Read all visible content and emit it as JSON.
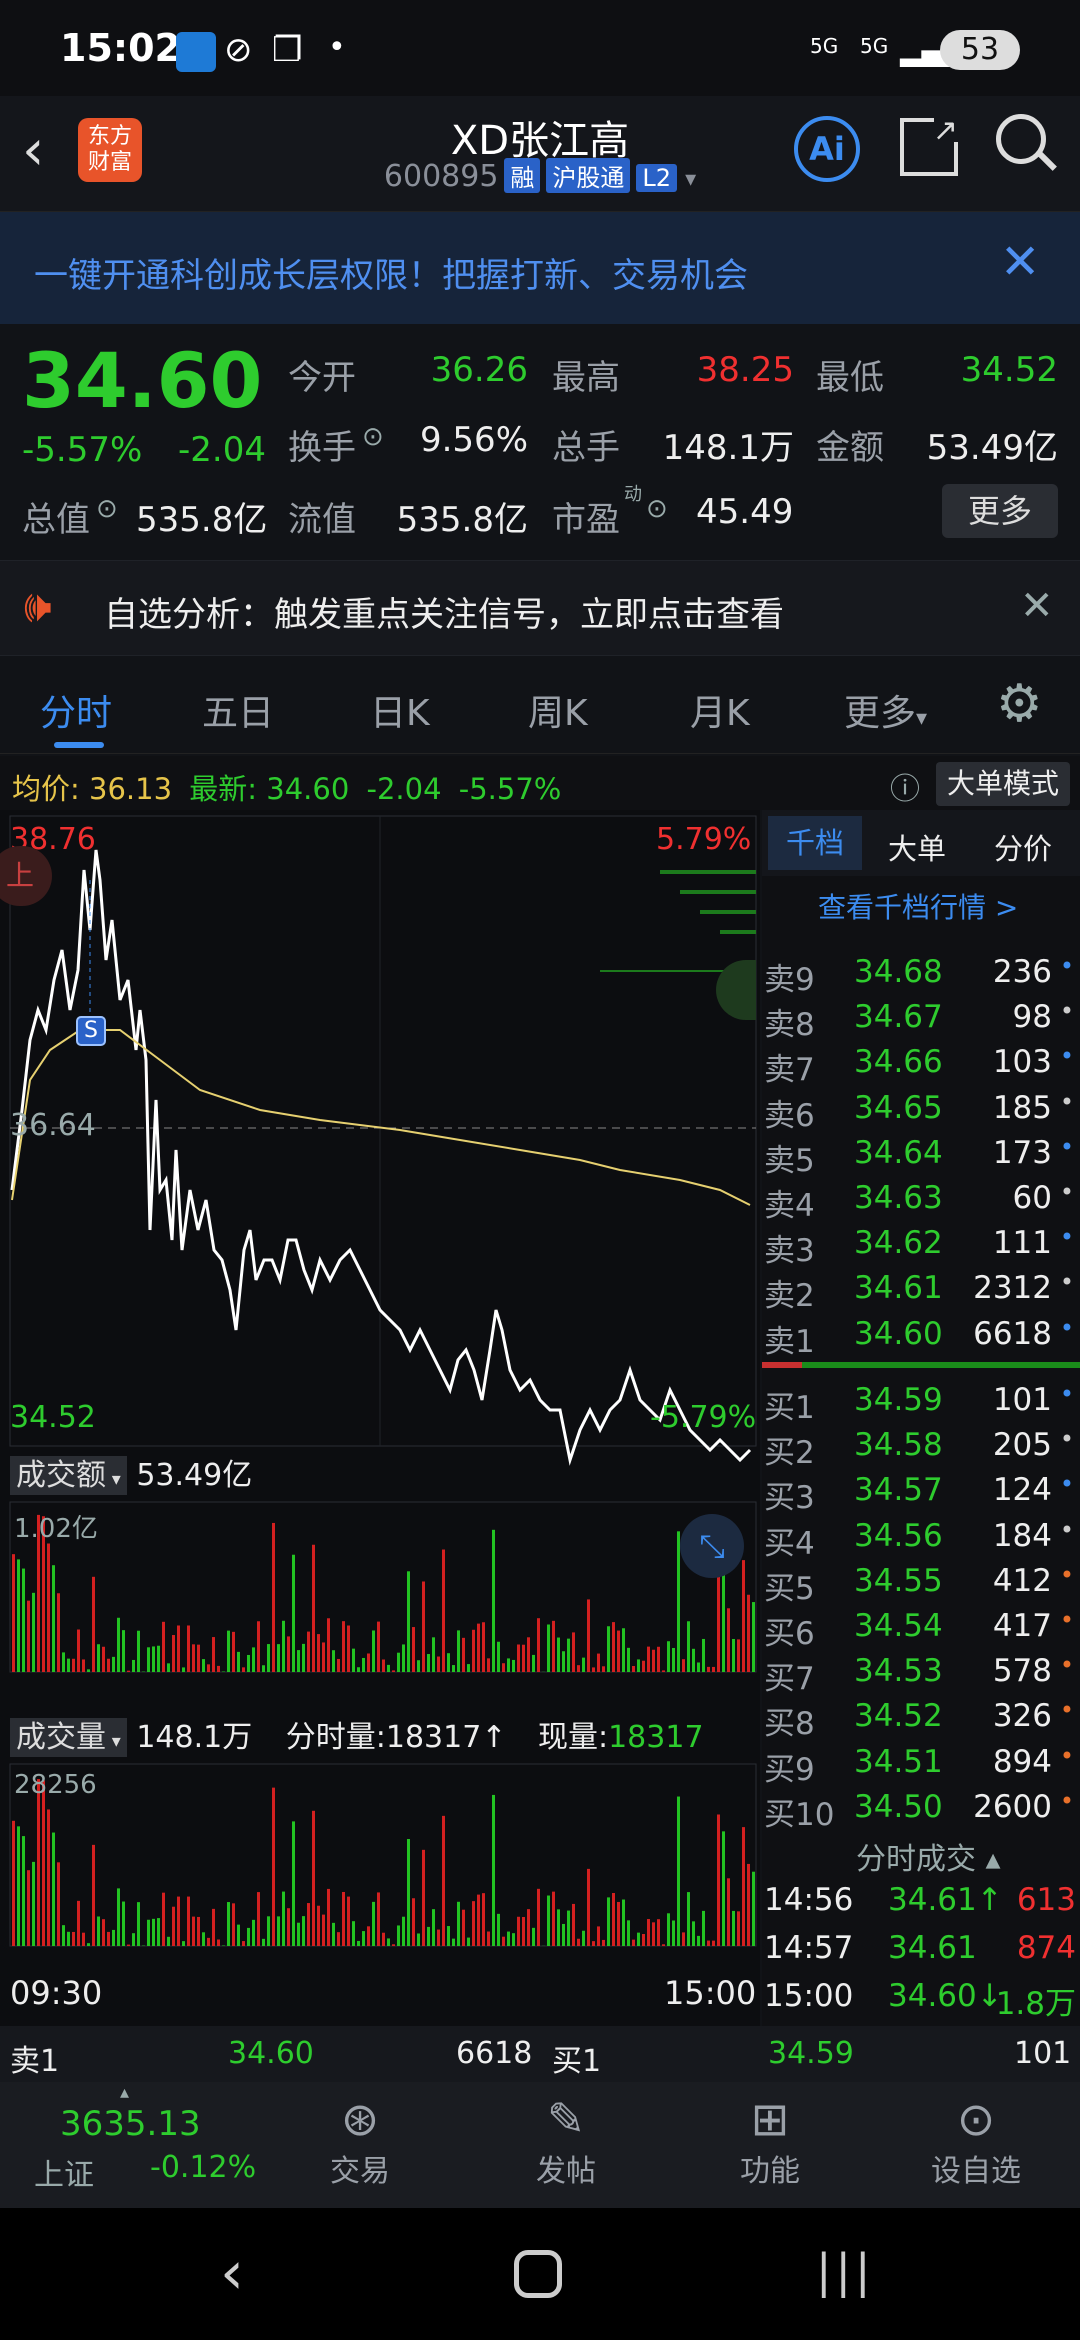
{
  "status": {
    "time": "15:02",
    "battery": "53",
    "net1": "5G",
    "net2": "5G"
  },
  "header": {
    "brand": "东方\n财富",
    "stock_name": "XD张江高",
    "code": "600895",
    "tags": [
      "融",
      "沪股通",
      "L2"
    ],
    "ai_label": "Ai"
  },
  "banner": {
    "text": "一键开通科创成长层权限！把握打新、交易机会"
  },
  "quote": {
    "price": "34.60",
    "change_pct": "-5.57%",
    "change": "-2.04",
    "open_label": "今开",
    "open": "36.26",
    "high_label": "最高",
    "high": "38.25",
    "low_label": "最低",
    "low": "34.52",
    "turnover_label": "换手",
    "turnover": "9.56%",
    "vol_label": "总手",
    "vol": "148.1万",
    "amount_label": "金额",
    "amount": "53.49亿",
    "mcap_label": "总值",
    "mcap": "535.8亿",
    "float_label": "流值",
    "float": "535.8亿",
    "pe_label": "市盈",
    "pe_sup": "动",
    "pe": "45.49",
    "more": "更多"
  },
  "notice": {
    "text": "自选分析：触发重点关注信号，立即点击查看"
  },
  "tabs": [
    "分时",
    "五日",
    "日K",
    "周K",
    "月K",
    "更多"
  ],
  "info_line": {
    "avg_label": "均价:",
    "avg": "36.13",
    "latest_label": "最新:",
    "latest": "34.60",
    "chg": "-2.04",
    "pct": "-5.57%",
    "mode_btn": "大单模式"
  },
  "chart": {
    "high_label": "38.76",
    "high_pct": "5.79%",
    "mid_label": "36.64",
    "low_label": "34.52",
    "low_pct": "-5.79%",
    "s_marker": "S",
    "up_marker": "上",
    "amount_label": "成交额",
    "amount_value": "53.49亿",
    "amount_max": "1.02亿",
    "vol_label": "成交量",
    "vol_value": "148.1万",
    "tick_label": "分时量:",
    "tick_value": "18317",
    "now_label": "现量:",
    "now_value": "18317",
    "vol_max": "28256",
    "time_start": "09:30",
    "time_end": "15:00"
  },
  "orderbook": {
    "tabs": [
      "千档",
      "大单",
      "分价"
    ],
    "link": "查看千档行情 >",
    "sells": [
      {
        "label": "卖9",
        "price": "34.68",
        "vol": "236"
      },
      {
        "label": "卖8",
        "price": "34.67",
        "vol": "98"
      },
      {
        "label": "卖7",
        "price": "34.66",
        "vol": "103"
      },
      {
        "label": "卖6",
        "price": "34.65",
        "vol": "185"
      },
      {
        "label": "卖5",
        "price": "34.64",
        "vol": "173"
      },
      {
        "label": "卖4",
        "price": "34.63",
        "vol": "60"
      },
      {
        "label": "卖3",
        "price": "34.62",
        "vol": "111"
      },
      {
        "label": "卖2",
        "price": "34.61",
        "vol": "2312"
      },
      {
        "label": "卖1",
        "price": "34.60",
        "vol": "6618"
      }
    ],
    "buys": [
      {
        "label": "买1",
        "price": "34.59",
        "vol": "101"
      },
      {
        "label": "买2",
        "price": "34.58",
        "vol": "205"
      },
      {
        "label": "买3",
        "price": "34.57",
        "vol": "124"
      },
      {
        "label": "买4",
        "price": "34.56",
        "vol": "184"
      },
      {
        "label": "买5",
        "price": "34.55",
        "vol": "412"
      },
      {
        "label": "买6",
        "price": "34.54",
        "vol": "417"
      },
      {
        "label": "买7",
        "price": "34.53",
        "vol": "578"
      },
      {
        "label": "买8",
        "price": "34.52",
        "vol": "326"
      },
      {
        "label": "买9",
        "price": "34.51",
        "vol": "894"
      },
      {
        "label": "买10",
        "price": "34.50",
        "vol": "2600"
      }
    ],
    "trades_title": "分时成交",
    "trades": [
      {
        "time": "14:56",
        "price": "34.61↑",
        "vol": "613"
      },
      {
        "time": "14:57",
        "price": "34.61",
        "vol": "874"
      },
      {
        "time": "15:00",
        "price": "34.60↓",
        "vol": "1.8万"
      }
    ]
  },
  "bottom_quote": {
    "sell_label": "卖1",
    "sell_price": "34.60",
    "sell_vol": "6618",
    "buy_label": "买1",
    "buy_price": "34.59",
    "buy_vol": "101"
  },
  "bottom_nav": {
    "index_value": "3635.13",
    "index_name": "上证",
    "index_pct": "-0.12%",
    "items": [
      "交易",
      "发帖",
      "功能",
      "设自选"
    ]
  }
}
